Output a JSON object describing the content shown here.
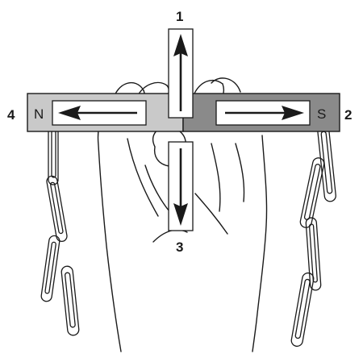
{
  "labels": {
    "top": "1",
    "right": "2",
    "bottom": "3",
    "left": "4"
  },
  "poles": {
    "north": "N",
    "south": "S"
  },
  "colors": {
    "north_half": "#c9c9c9",
    "south_half": "#8a8a8a",
    "outline": "#1a1a1a",
    "background": "#ffffff"
  }
}
